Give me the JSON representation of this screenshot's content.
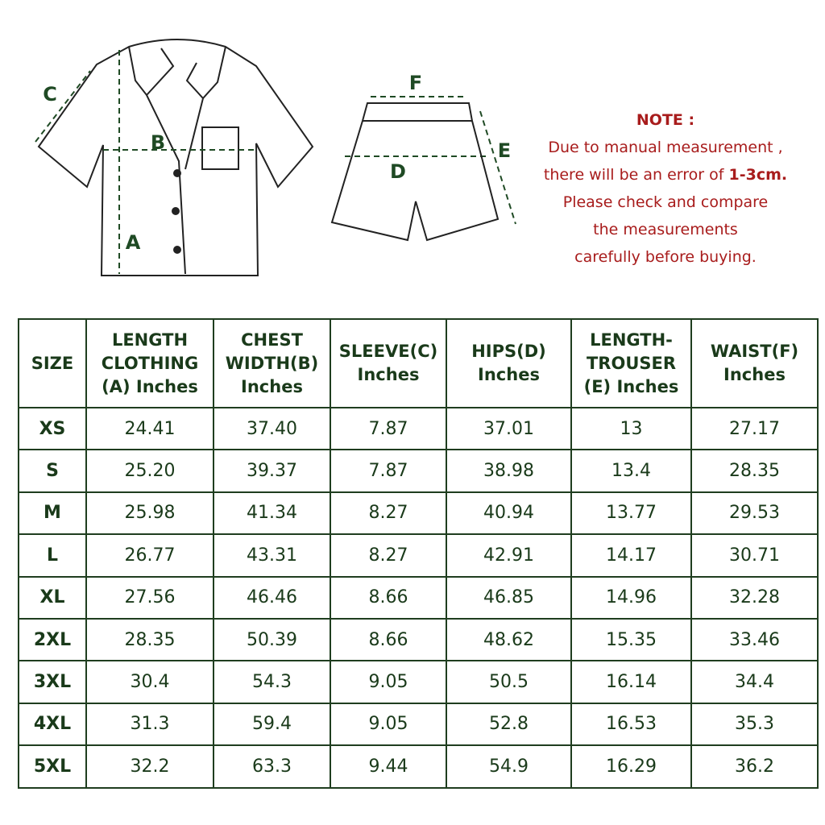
{
  "diagram": {
    "shirt_labels": {
      "a": "A",
      "b": "B",
      "c": "C"
    },
    "shorts_labels": {
      "d": "D",
      "e": "E",
      "f": "F"
    }
  },
  "note": {
    "title": "NOTE :",
    "lines": [
      {
        "text": "Due to manual measurement ,"
      },
      {
        "text": "there will be an error of",
        "bold": "1-3cm."
      },
      {
        "text": "Please check and compare"
      },
      {
        "text": "the measurements"
      },
      {
        "text": "carefully before buying."
      }
    ]
  },
  "table": {
    "header": [
      [
        "SIZE"
      ],
      [
        "LENGTH",
        "CLOTHING",
        "(A) Inches"
      ],
      [
        "CHEST",
        "WIDTH(B)",
        "Inches"
      ],
      [
        "SLEEVE(C)",
        "Inches"
      ],
      [
        "HIPS(D)",
        "Inches"
      ],
      [
        "LENGTH-",
        "TROUSER",
        "(E) Inches"
      ],
      [
        "WAIST(F)",
        "Inches"
      ]
    ],
    "rows": [
      [
        "XS",
        "24.41",
        "37.40",
        "7.87",
        "37.01",
        "13",
        "27.17"
      ],
      [
        "S",
        "25.20",
        "39.37",
        "7.87",
        "38.98",
        "13.4",
        "28.35"
      ],
      [
        "M",
        "25.98",
        "41.34",
        "8.27",
        "40.94",
        "13.77",
        "29.53"
      ],
      [
        "L",
        "26.77",
        "43.31",
        "8.27",
        "42.91",
        "14.17",
        "30.71"
      ],
      [
        "XL",
        "27.56",
        "46.46",
        "8.66",
        "46.85",
        "14.96",
        "32.28"
      ],
      [
        "2XL",
        "28.35",
        "50.39",
        "8.66",
        "48.62",
        "15.35",
        "33.46"
      ],
      [
        "3XL",
        "30.4",
        "54.3",
        "9.05",
        "50.5",
        "16.14",
        "34.4"
      ],
      [
        "4XL",
        "31.3",
        "59.4",
        "9.05",
        "52.8",
        "16.53",
        "35.3"
      ],
      [
        "5XL",
        "32.2",
        "63.3",
        "9.44",
        "54.9",
        "16.29",
        "36.2"
      ]
    ]
  }
}
